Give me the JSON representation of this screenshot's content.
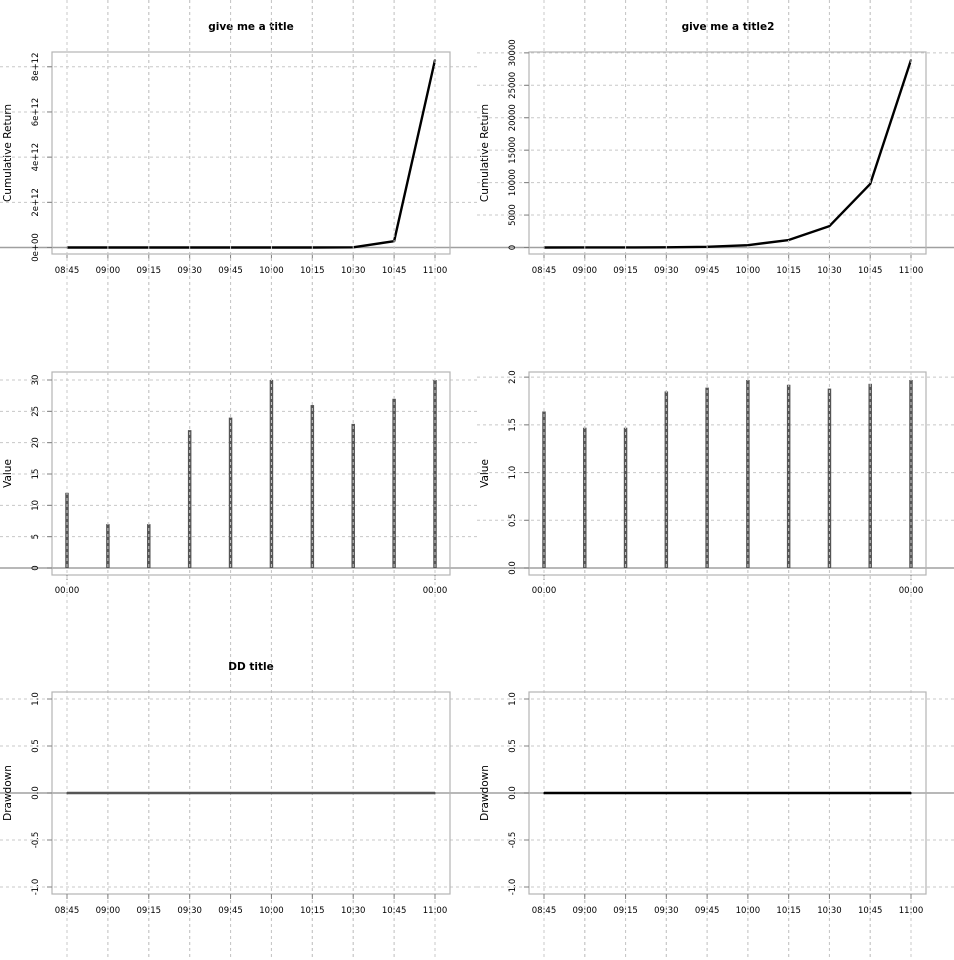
{
  "chart_data": [
    {
      "type": "line",
      "title": "give me a title",
      "xlabel": "",
      "ylabel": "Cumulative Return",
      "x": [
        "08:45",
        "09:00",
        "09:15",
        "09:30",
        "09:45",
        "10:00",
        "10:15",
        "10:30",
        "10:45",
        "11:00"
      ],
      "y": [
        0,
        0,
        0,
        0,
        0,
        0,
        0,
        10000000000.0,
        280000000000.0,
        8300000000000.0
      ],
      "ylim": [
        0,
        8300000000000.0
      ],
      "yticks": [
        0,
        2000000000000.0,
        4000000000000.0,
        6000000000000.0,
        8000000000000.0
      ],
      "ytick_labels": [
        "0e+00",
        "2e+12",
        "4e+12",
        "6e+12",
        "8e+12"
      ],
      "grid": true,
      "line_color": "#000000"
    },
    {
      "type": "line",
      "title": "give me a title2",
      "xlabel": "",
      "ylabel": "Cumulative Return",
      "x": [
        "08:45",
        "09:00",
        "09:15",
        "09:30",
        "09:45",
        "10:00",
        "10:15",
        "10:30",
        "10:45",
        "11:00"
      ],
      "y": [
        0,
        2,
        8,
        30,
        110,
        360,
        1150,
        3300,
        9800,
        28900
      ],
      "ylim": [
        0,
        28900
      ],
      "yticks": [
        0,
        5000,
        10000,
        15000,
        20000,
        25000,
        30000
      ],
      "ytick_labels": [
        "0",
        "5000",
        "10000",
        "15000",
        "20000",
        "25000",
        "30000"
      ],
      "grid": true,
      "line_color": "#000000"
    },
    {
      "type": "bar",
      "title": "",
      "xlabel": "",
      "ylabel": "Value",
      "x": [
        "00:00",
        "",
        "",
        "",
        "",
        "",
        "",
        "",
        "",
        "00:00"
      ],
      "values": [
        12,
        7,
        7,
        22,
        24,
        30,
        26,
        23,
        27,
        30
      ],
      "ylim": [
        0,
        30
      ],
      "yticks": [
        0,
        5,
        10,
        15,
        20,
        25,
        30
      ],
      "ytick_labels": [
        "0",
        "5",
        "10",
        "15",
        "20",
        "25",
        "30"
      ],
      "xtick_labels": [
        "00:00",
        "00:00"
      ],
      "grid": true,
      "bar_color": "#555555"
    },
    {
      "type": "bar",
      "title": "",
      "xlabel": "",
      "ylabel": "Value",
      "x": [
        "00:00",
        "",
        "",
        "",
        "",
        "",
        "",
        "",
        "",
        "00:00"
      ],
      "values": [
        1.64,
        1.47,
        1.47,
        1.85,
        1.89,
        1.97,
        1.92,
        1.88,
        1.93,
        1.97
      ],
      "ylim": [
        0,
        1.97
      ],
      "yticks": [
        0,
        0.5,
        1.0,
        1.5,
        2.0
      ],
      "ytick_labels": [
        "0.0",
        "0.5",
        "1.0",
        "1.5",
        "2.0"
      ],
      "xtick_labels": [
        "00:00",
        "00:00"
      ],
      "grid": true,
      "bar_color": "#555555"
    },
    {
      "type": "line",
      "title": "DD title",
      "xlabel": "",
      "ylabel": "Drawdown",
      "x": [
        "08:45",
        "09:00",
        "09:15",
        "09:30",
        "09:45",
        "10:00",
        "10:15",
        "10:30",
        "10:45",
        "11:00"
      ],
      "y": [
        0,
        0,
        0,
        0,
        0,
        0,
        0,
        0,
        0,
        0
      ],
      "ylim": [
        -1,
        1
      ],
      "yticks": [
        -1,
        -0.5,
        0,
        0.5,
        1
      ],
      "ytick_labels": [
        "-1.0",
        "-0.5",
        "0.0",
        "0.5",
        "1.0"
      ],
      "grid": true,
      "line_color": "#555555"
    },
    {
      "type": "line",
      "title": "",
      "xlabel": "",
      "ylabel": "Drawdown",
      "x": [
        "08:45",
        "09:00",
        "09:15",
        "09:30",
        "09:45",
        "10:00",
        "10:15",
        "10:30",
        "10:45",
        "11:00"
      ],
      "y": [
        0,
        0,
        0,
        0,
        0,
        0,
        0,
        0,
        0,
        0
      ],
      "ylim": [
        -1,
        1
      ],
      "yticks": [
        -1,
        -0.5,
        0,
        0.5,
        1
      ],
      "ytick_labels": [
        "-1.0",
        "-0.5",
        "0.0",
        "0.5",
        "1.0"
      ],
      "grid": true,
      "line_color": "#000000"
    }
  ]
}
